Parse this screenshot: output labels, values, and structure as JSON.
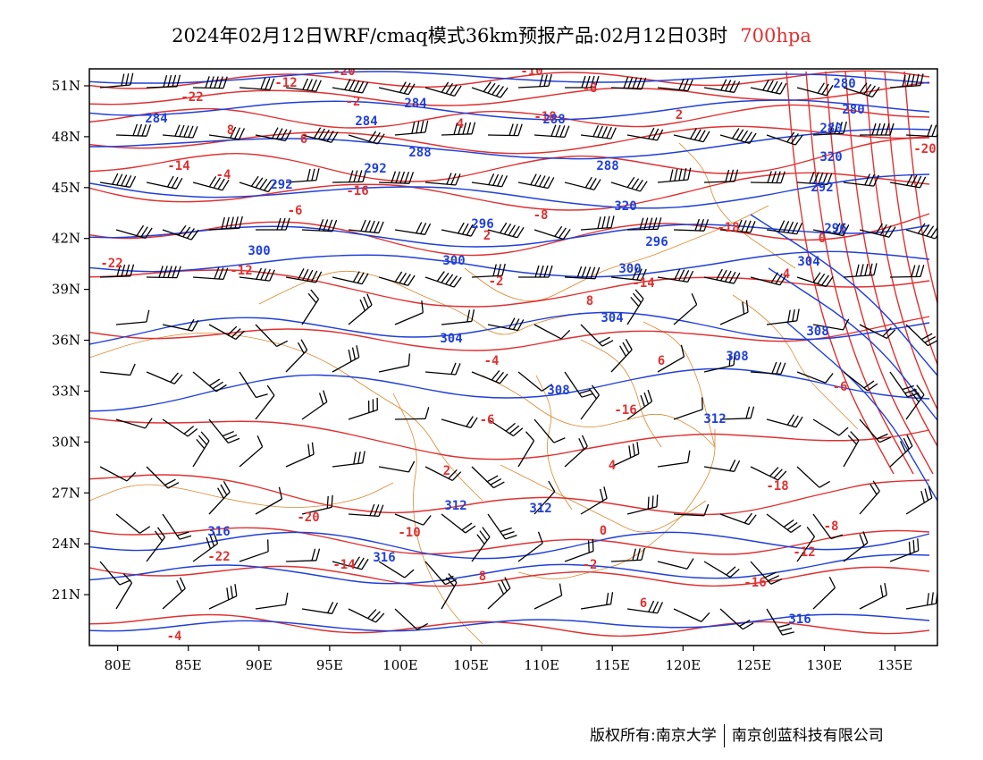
{
  "title": {
    "main": "2024年02月12日WRF/cmaq模式36km预报产品:02月12日03时",
    "level": "700hpa"
  },
  "colors": {
    "height_contour": "#1f3fd8",
    "temperature_contour": "#e03030",
    "boundary": "#d9892e",
    "wind_barb": "#000000",
    "level_label": "#e03030"
  },
  "map": {
    "lon_range": [
      78,
      138
    ],
    "lat_range": [
      18,
      52
    ],
    "lon_ticks": [
      "80E",
      "85E",
      "90E",
      "95E",
      "100E",
      "105E",
      "110E",
      "115E",
      "120E",
      "125E",
      "130E",
      "135E"
    ],
    "lat_ticks": [
      "51N",
      "48N",
      "45N",
      "42N",
      "39N",
      "36N",
      "33N",
      "30N",
      "27N",
      "24N",
      "21N"
    ],
    "height_labels": [
      "280",
      "284",
      "288",
      "292",
      "296",
      "300",
      "304",
      "308",
      "312",
      "316",
      "320"
    ],
    "temperature_labels": [
      "-22",
      "-20",
      "-18",
      "-16",
      "-14",
      "-12",
      "-10",
      "-8",
      "-6",
      "-4",
      "-2",
      "0",
      "2",
      "4",
      "6",
      "8"
    ]
  },
  "footer": {
    "left": "版权所有:南京大学",
    "right": "南京创蓝科技有限公司"
  }
}
